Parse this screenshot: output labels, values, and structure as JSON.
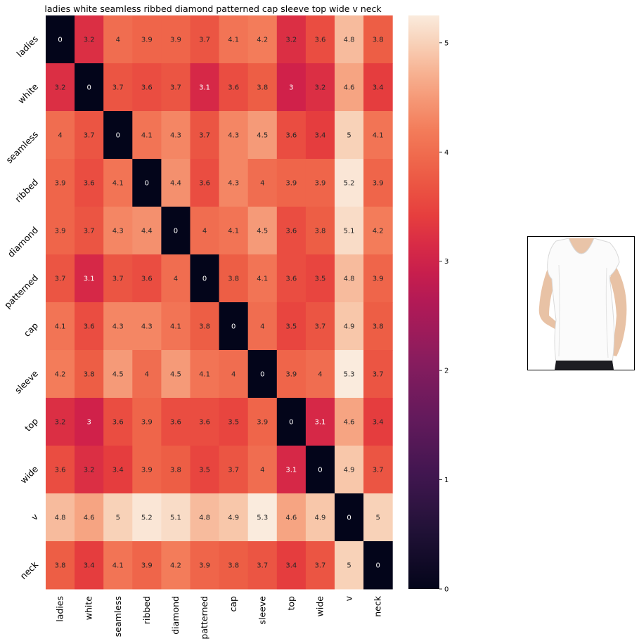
{
  "chart_data": {
    "type": "heatmap",
    "title": "ladies white seamless ribbed diamond patterned cap sleeve top wide v neck",
    "xlabels": [
      "ladies",
      "white",
      "seamless",
      "ribbed",
      "diamond",
      "patterned",
      "cap",
      "sleeve",
      "top",
      "wide",
      "v",
      "neck"
    ],
    "ylabels": [
      "ladies",
      "white",
      "seamless",
      "ribbed",
      "diamond",
      "patterned",
      "cap",
      "sleeve",
      "top",
      "wide",
      "v",
      "neck"
    ],
    "values": [
      [
        0,
        3.2,
        4,
        3.9,
        3.9,
        3.7,
        4.1,
        4.2,
        3.2,
        3.6,
        4.8,
        3.8
      ],
      [
        3.2,
        0,
        3.7,
        3.6,
        3.7,
        3.1,
        3.6,
        3.8,
        3,
        3.2,
        4.6,
        3.4
      ],
      [
        4,
        3.7,
        0,
        4.1,
        4.3,
        3.7,
        4.3,
        4.5,
        3.6,
        3.4,
        5,
        4.1
      ],
      [
        3.9,
        3.6,
        4.1,
        0,
        4.4,
        3.6,
        4.3,
        4,
        3.9,
        3.9,
        5.2,
        3.9
      ],
      [
        3.9,
        3.7,
        4.3,
        4.4,
        0,
        4,
        4.1,
        4.5,
        3.6,
        3.8,
        5.1,
        4.2
      ],
      [
        3.7,
        3.1,
        3.7,
        3.6,
        4,
        0,
        3.8,
        4.1,
        3.6,
        3.5,
        4.8,
        3.9
      ],
      [
        4.1,
        3.6,
        4.3,
        4.3,
        4.1,
        3.8,
        0,
        4,
        3.5,
        3.7,
        4.9,
        3.8
      ],
      [
        4.2,
        3.8,
        4.5,
        4,
        4.5,
        4.1,
        4,
        0,
        3.9,
        4,
        5.3,
        3.7
      ],
      [
        3.2,
        3,
        3.6,
        3.9,
        3.6,
        3.6,
        3.5,
        3.9,
        0,
        3.1,
        4.6,
        3.4
      ],
      [
        3.6,
        3.2,
        3.4,
        3.9,
        3.8,
        3.5,
        3.7,
        4,
        3.1,
        0,
        4.9,
        3.7
      ],
      [
        4.8,
        4.6,
        5,
        5.2,
        5.1,
        4.8,
        4.9,
        5.3,
        4.6,
        4.9,
        0,
        5
      ],
      [
        3.8,
        3.4,
        4.1,
        3.9,
        4.2,
        3.9,
        3.8,
        3.7,
        3.4,
        3.7,
        5,
        0
      ]
    ],
    "colorbar": {
      "min": 0,
      "max": 5.25,
      "ticks": [
        0,
        1,
        2,
        3,
        4,
        5
      ],
      "colormap": "rocket"
    },
    "grid": false,
    "legend": "colorbar-right"
  },
  "image_panel": {
    "subject": "white short-sleeve v-neck top"
  }
}
